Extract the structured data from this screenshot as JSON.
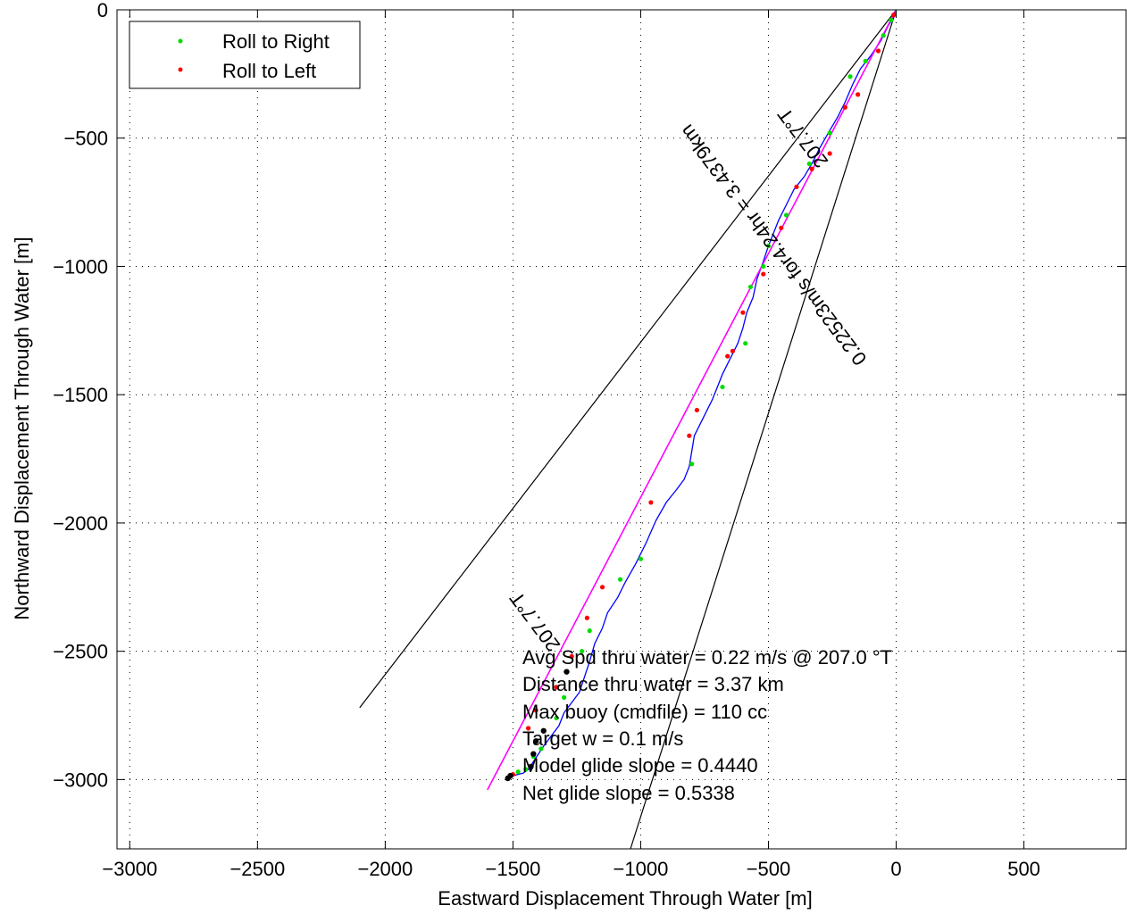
{
  "chart_data": {
    "type": "line",
    "title": "",
    "xlabel": "Eastward Displacement Through Water [m]",
    "ylabel": "Northward Displacement Through Water [m]",
    "xlim": [
      -3050,
      900
    ],
    "ylim": [
      -3270,
      0
    ],
    "x_ticks": [
      -3000,
      -2500,
      -2000,
      -1500,
      -1000,
      -500,
      0,
      500
    ],
    "y_ticks": [
      0,
      -500,
      -1000,
      -1500,
      -2000,
      -2500,
      -3000
    ],
    "grid": true,
    "legend": {
      "placement": "top-left",
      "entries": [
        {
          "label": "Roll to Right",
          "color": "#00dd00"
        },
        {
          "label": "Roll to Left",
          "color": "#ff0000"
        }
      ]
    },
    "series": [
      {
        "color": "#0000ff",
        "x": [
          0,
          -10,
          -30,
          -60,
          -100,
          -140,
          -170,
          -200,
          -230,
          -260,
          -300,
          -330,
          -360,
          -400,
          -430,
          -460,
          -480,
          -500,
          -520,
          -545,
          -560,
          -585,
          -600,
          -620,
          -650,
          -680,
          -700,
          -720,
          -740,
          -760,
          -790,
          -800,
          -810,
          -830,
          -860,
          -900,
          -940,
          -980,
          -1020,
          -1060,
          -1090,
          -1130,
          -1150,
          -1180,
          -1200,
          -1220,
          -1240,
          -1270,
          -1300,
          -1320,
          -1350,
          -1380,
          -1400,
          -1420,
          -1440,
          -1460,
          -1480,
          -1500,
          -1510
        ],
        "y": [
          0,
          -30,
          -60,
          -120,
          -180,
          -230,
          -290,
          -360,
          -420,
          -470,
          -540,
          -600,
          -650,
          -700,
          -760,
          -820,
          -870,
          -920,
          -980,
          -1050,
          -1120,
          -1180,
          -1240,
          -1300,
          -1360,
          -1420,
          -1470,
          -1520,
          -1560,
          -1600,
          -1660,
          -1720,
          -1780,
          -1830,
          -1870,
          -1920,
          -1990,
          -2080,
          -2160,
          -2230,
          -2290,
          -2350,
          -2410,
          -2470,
          -2540,
          -2600,
          -2660,
          -2700,
          -2740,
          -2790,
          -2830,
          -2870,
          -2900,
          -2930,
          -2960,
          -2975,
          -2980,
          -2985,
          -2990
        ]
      },
      {
        "color": "#ff00ff",
        "x": [
          0,
          -1600
        ],
        "y": [
          0,
          -3040
        ]
      }
    ],
    "roll_right_points": {
      "x": [
        -20,
        -50,
        -120,
        -180,
        -260,
        -340,
        -430,
        -500,
        -520,
        -570,
        -590,
        -680,
        -800,
        -1000,
        -1080,
        -1200,
        -1230,
        -1300,
        -1330,
        -1390,
        -1420,
        -1450,
        -1480
      ],
      "y": [
        -40,
        -100,
        -200,
        -260,
        -480,
        -600,
        -800,
        -920,
        -1000,
        -1080,
        -1300,
        -1470,
        -1770,
        -2140,
        -2220,
        -2420,
        -2500,
        -2680,
        -2760,
        -2880,
        -2910,
        -2960,
        -2970
      ],
      "color": "#00dd00"
    },
    "roll_left_points": {
      "x": [
        -10,
        -70,
        -150,
        -200,
        -260,
        -330,
        -390,
        -450,
        -520,
        -600,
        -640,
        -660,
        -780,
        -810,
        -960,
        -1150,
        -1210,
        -1270,
        -1330,
        -1410,
        -1440,
        -1500
      ],
      "y": [
        -20,
        -160,
        -330,
        -380,
        -560,
        -620,
        -690,
        -850,
        -1030,
        -1180,
        -1330,
        -1350,
        -1560,
        -1660,
        -1920,
        -2250,
        -2370,
        -2520,
        -2640,
        -2730,
        -2800,
        -2980
      ],
      "color": "#ff0000"
    },
    "black_points": {
      "x": [
        -1290,
        -1380,
        -1410,
        -1420,
        -1430,
        -1510,
        -1520
      ],
      "y": [
        -2580,
        -2810,
        -2850,
        -2900,
        -2950,
        -2985,
        -2995
      ],
      "color": "#000000"
    },
    "envelope_lines": [
      {
        "x": [
          0,
          -2100
        ],
        "y": [
          0,
          -2720
        ]
      },
      {
        "x": [
          0,
          -1040
        ],
        "y": [
          0,
          -3270
        ]
      }
    ],
    "annotations": {
      "heading_top": "207.7°T",
      "speed_along": "0.22523m/s for4.24hr = 3.4379km",
      "heading_bottom": "207.7°T",
      "stats": [
        "Avg Spd thru water =  0.22 m/s @ 207.0   °T",
        "Distance thru water =  3.37 km",
        "Max buoy (cmdfile) = 110 cc",
        "Target w = 0.1 m/s",
        "Model glide slope = 0.4440",
        "Net glide slope = 0.5338"
      ]
    }
  }
}
